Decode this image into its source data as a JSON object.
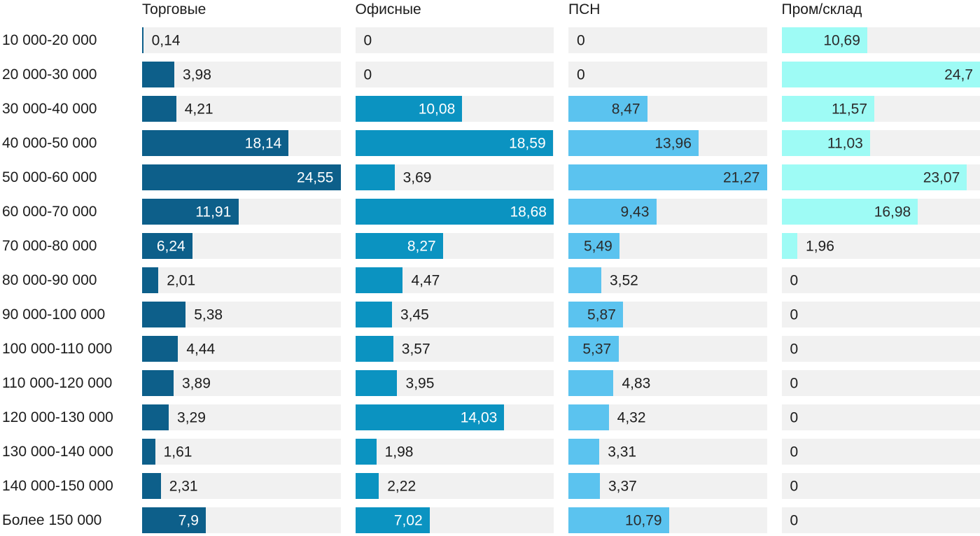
{
  "chart_data": {
    "type": "bar",
    "orientation": "horizontal",
    "title": "",
    "xlabel": "",
    "ylabel": "",
    "legend_position": "column headers on top",
    "grid": false,
    "scaling": "each series scaled so its own max value fills the full track width",
    "track_color": "#f1f1f1",
    "text_color": "#1c1c1c",
    "decimal_separator": ",",
    "categories": [
      "10 000-20 000",
      "20 000-30 000",
      "30 000-40 000",
      "40 000-50 000",
      "50 000-60 000",
      "60 000-70 000",
      "70 000-80 000",
      "80 000-90 000",
      "90 000-100 000",
      "100 000-110 000",
      "110 000-120 000",
      "120 000-130 000",
      "130 000-140 000",
      "140 000-150 000",
      "Более 150 000"
    ],
    "series": [
      {
        "name": "Торговые",
        "color": "#0d5f8a",
        "inside_label_color": "#ffffff",
        "values": [
          0.14,
          3.98,
          4.21,
          18.14,
          24.55,
          11.91,
          6.24,
          2.01,
          5.38,
          4.44,
          3.89,
          3.29,
          1.61,
          2.31,
          7.9
        ]
      },
      {
        "name": "Офисные",
        "color": "#0b93c1",
        "inside_label_color": "#ffffff",
        "values": [
          0,
          0,
          10.08,
          18.59,
          3.69,
          18.68,
          8.27,
          4.47,
          3.45,
          3.57,
          3.95,
          14.03,
          1.98,
          2.22,
          7.02
        ]
      },
      {
        "name": "ПСН",
        "color": "#5bc3ef",
        "inside_label_color": "#2b2b2b",
        "values": [
          0,
          0,
          8.47,
          13.96,
          21.27,
          9.43,
          5.49,
          3.52,
          5.87,
          5.37,
          4.83,
          4.32,
          3.31,
          3.37,
          10.79
        ]
      },
      {
        "name": "Пром/склад",
        "color": "#9efbf5",
        "inside_label_color": "#2b2b2b",
        "values": [
          10.69,
          24.7,
          11.57,
          11.03,
          23.07,
          16.98,
          1.96,
          0,
          0,
          0,
          0,
          0,
          0,
          0,
          0
        ]
      }
    ]
  }
}
